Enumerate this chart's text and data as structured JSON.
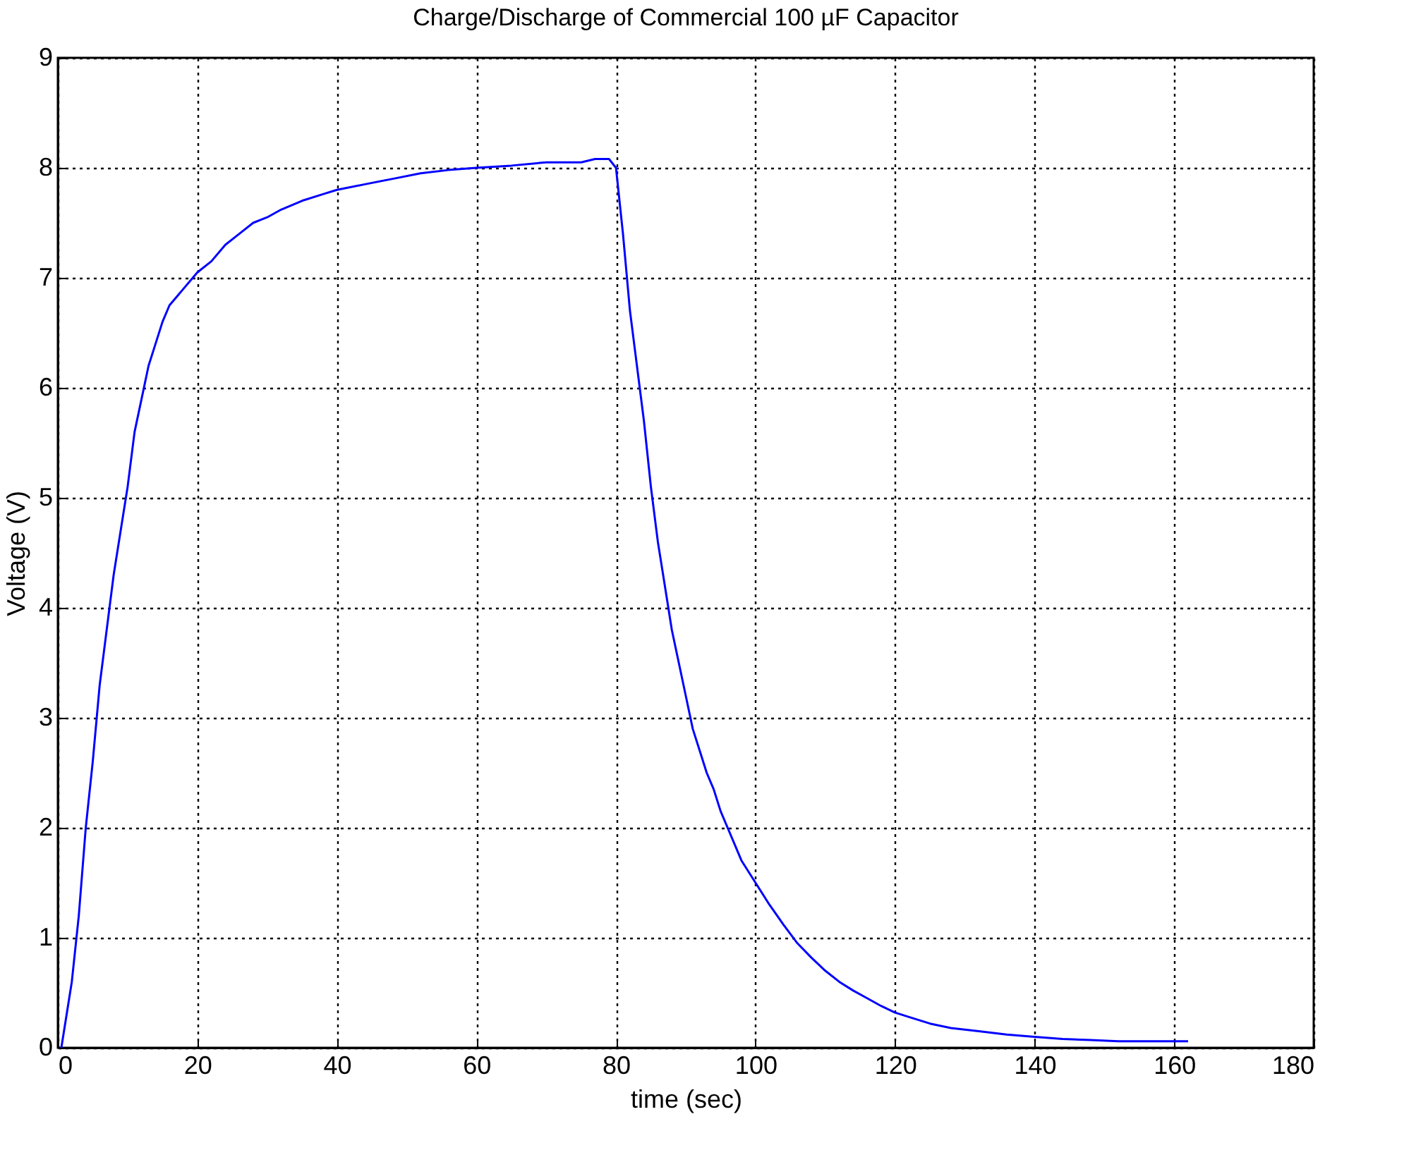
{
  "chart_data": {
    "type": "line",
    "title": "Charge/Discharge of Commercial 100 µF Capacitor",
    "xlabel": "time (sec)",
    "ylabel": "Voltage (V)",
    "x": [
      0.5,
      2,
      3,
      4,
      5,
      6,
      7,
      8,
      9,
      10,
      11,
      12,
      13,
      14,
      15,
      16,
      18,
      20,
      22,
      24,
      26,
      28,
      30,
      32,
      35,
      38,
      40,
      44,
      48,
      52,
      56,
      60,
      65,
      70,
      75,
      77,
      79,
      80,
      81,
      82,
      83,
      84,
      85,
      86,
      87,
      88,
      89,
      90,
      91,
      92,
      93,
      94,
      95,
      96,
      97,
      98,
      100,
      102,
      104,
      106,
      108,
      110,
      112,
      114,
      116,
      118,
      120,
      122,
      125,
      128,
      132,
      136,
      140,
      144,
      148,
      152,
      162
    ],
    "series": [
      {
        "color": "#0000ff",
        "values": [
          0,
          0.6,
          1.2,
          2.0,
          2.6,
          3.3,
          3.8,
          4.3,
          4.7,
          5.1,
          5.6,
          5.9,
          6.2,
          6.4,
          6.6,
          6.75,
          6.9,
          7.05,
          7.15,
          7.3,
          7.4,
          7.5,
          7.55,
          7.62,
          7.7,
          7.76,
          7.8,
          7.85,
          7.9,
          7.95,
          7.98,
          8.0,
          8.02,
          8.05,
          8.05,
          8.08,
          8.08,
          8.0,
          7.4,
          6.7,
          6.2,
          5.7,
          5.1,
          4.6,
          4.2,
          3.8,
          3.5,
          3.2,
          2.9,
          2.7,
          2.5,
          2.35,
          2.15,
          2.0,
          1.85,
          1.7,
          1.5,
          1.3,
          1.12,
          0.95,
          0.82,
          0.7,
          0.6,
          0.52,
          0.45,
          0.38,
          0.32,
          0.28,
          0.22,
          0.18,
          0.15,
          0.12,
          0.1,
          0.08,
          0.07,
          0.06,
          0.06
        ]
      }
    ],
    "xlim": [
      0,
      180
    ],
    "xticks": [
      0,
      20,
      40,
      60,
      80,
      100,
      120,
      140,
      160,
      180
    ],
    "ylim": [
      0,
      9
    ],
    "yticks": [
      0,
      1,
      2,
      3,
      4,
      5,
      6,
      7,
      8,
      9
    ],
    "grid": true,
    "line_style": "solid"
  }
}
